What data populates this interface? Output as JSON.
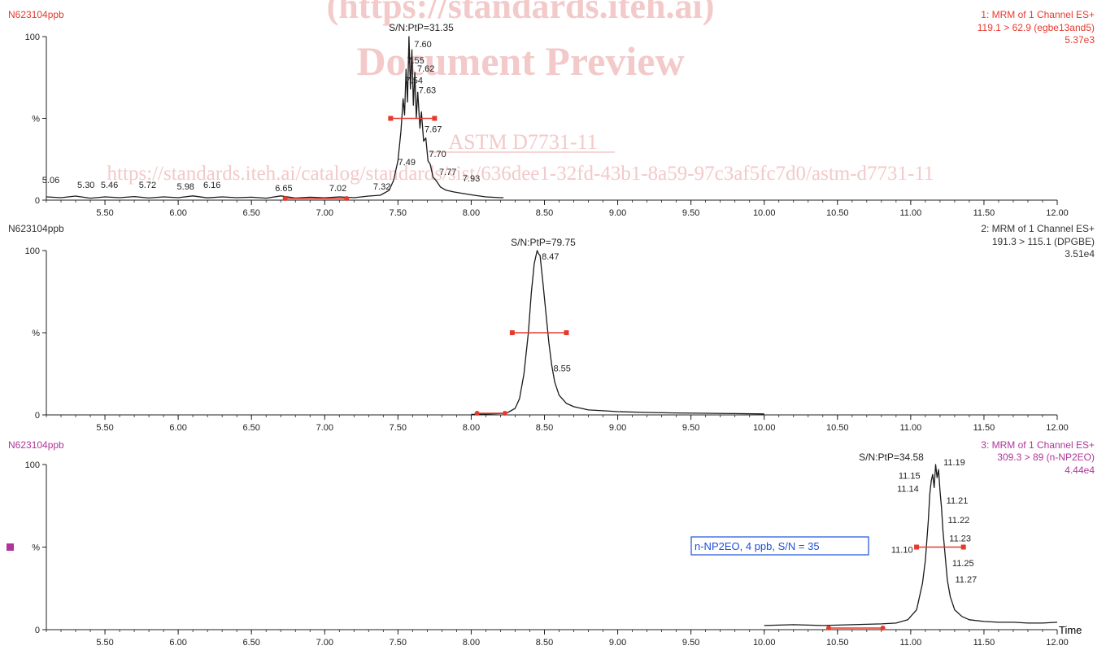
{
  "watermark": {
    "line1": "(https://standards.iteh.ai)",
    "line2": "Document Preview",
    "line3": "ASTM D7731-11",
    "line4": "https://standards.iteh.ai/catalog/standards/sist/636dee1-32fd-43b1-8a59-97c3af5fc7d0/astm-d7731-11"
  },
  "colors": {
    "trace": "#1a1a1a",
    "integration": "#e63a2e",
    "panel1_header": "#e63a2e",
    "panel2_header": "#333333",
    "panel3_header": "#b0359a",
    "annotation_text": "#1f4fd8",
    "watermark": "#f3c9c9"
  },
  "x_axis_title": "Time",
  "chart_data": [
    {
      "type": "line",
      "sample": "N623104ppb",
      "channel": "1: MRM of 1 Channel ES+",
      "transition": "119.1 > 62.9 (egbe13and5)",
      "intensity": "5.37e3",
      "xlim": [
        5.1,
        12.0
      ],
      "ylim": [
        0,
        100
      ],
      "x_ticks": [
        "5.50",
        "6.00",
        "6.50",
        "7.00",
        "7.50",
        "8.00",
        "8.50",
        "9.00",
        "9.50",
        "10.00",
        "10.50",
        "11.00",
        "11.50",
        "12.00"
      ],
      "y_ticks": [
        "0",
        "%",
        "100"
      ],
      "sn_label": "S/N:PtP=31.35",
      "peak_labels": [
        {
          "x": 5.06,
          "y": 9,
          "text": "5.06"
        },
        {
          "x": 5.3,
          "y": 6,
          "text": "5.30"
        },
        {
          "x": 5.46,
          "y": 6,
          "text": "5.46"
        },
        {
          "x": 5.72,
          "y": 6,
          "text": "5.72"
        },
        {
          "x": 5.98,
          "y": 5,
          "text": "5.98"
        },
        {
          "x": 6.16,
          "y": 6,
          "text": "6.16"
        },
        {
          "x": 6.65,
          "y": 4,
          "text": "6.65"
        },
        {
          "x": 7.02,
          "y": 4,
          "text": "7.02"
        },
        {
          "x": 7.32,
          "y": 5,
          "text": "7.32"
        },
        {
          "x": 7.49,
          "y": 20,
          "text": "7.49"
        },
        {
          "x": 7.54,
          "y": 70,
          "text": "7.54"
        },
        {
          "x": 7.55,
          "y": 82,
          "text": "7.55"
        },
        {
          "x": 7.6,
          "y": 92,
          "text": "7.60"
        },
        {
          "x": 7.62,
          "y": 77,
          "text": "7.62"
        },
        {
          "x": 7.63,
          "y": 64,
          "text": "7.63"
        },
        {
          "x": 7.67,
          "y": 40,
          "text": "7.67"
        },
        {
          "x": 7.7,
          "y": 25,
          "text": "7.70"
        },
        {
          "x": 7.77,
          "y": 14,
          "text": "7.77"
        },
        {
          "x": 7.93,
          "y": 10,
          "text": "7.93"
        }
      ],
      "integration_baseline": [
        6.73,
        7.15
      ],
      "half_height_bar": [
        7.45,
        7.75
      ],
      "half_height": 50,
      "trace": [
        [
          5.1,
          2
        ],
        [
          5.2,
          1.5
        ],
        [
          5.3,
          2.5
        ],
        [
          5.4,
          1.2
        ],
        [
          5.5,
          2
        ],
        [
          5.6,
          1.5
        ],
        [
          5.7,
          2.2
        ],
        [
          5.8,
          1.3
        ],
        [
          5.9,
          2
        ],
        [
          6.0,
          1.5
        ],
        [
          6.1,
          2.6
        ],
        [
          6.2,
          1.4
        ],
        [
          6.3,
          2
        ],
        [
          6.4,
          1.5
        ],
        [
          6.5,
          1.8
        ],
        [
          6.6,
          1.2
        ],
        [
          6.7,
          2.6
        ],
        [
          6.8,
          1.3
        ],
        [
          6.9,
          1.8
        ],
        [
          7.0,
          1.4
        ],
        [
          7.1,
          2
        ],
        [
          7.2,
          1.5
        ],
        [
          7.3,
          2.5
        ],
        [
          7.38,
          3
        ],
        [
          7.44,
          6
        ],
        [
          7.47,
          12
        ],
        [
          7.5,
          24
        ],
        [
          7.52,
          42
        ],
        [
          7.535,
          62
        ],
        [
          7.545,
          52
        ],
        [
          7.555,
          80
        ],
        [
          7.565,
          60
        ],
        [
          7.575,
          100
        ],
        [
          7.585,
          68
        ],
        [
          7.595,
          92
        ],
        [
          7.605,
          58
        ],
        [
          7.615,
          78
        ],
        [
          7.625,
          50
        ],
        [
          7.635,
          66
        ],
        [
          7.65,
          44
        ],
        [
          7.66,
          54
        ],
        [
          7.675,
          36
        ],
        [
          7.69,
          38
        ],
        [
          7.705,
          24
        ],
        [
          7.72,
          22
        ],
        [
          7.74,
          14
        ],
        [
          7.76,
          12
        ],
        [
          7.79,
          8
        ],
        [
          7.83,
          6
        ],
        [
          7.88,
          5
        ],
        [
          7.95,
          4
        ],
        [
          8.02,
          3
        ],
        [
          8.1,
          2
        ],
        [
          8.2,
          1.5
        ],
        [
          8.22,
          1.5
        ]
      ]
    },
    {
      "type": "line",
      "sample": "N623104ppb",
      "channel": "2: MRM of 1 Channel ES+",
      "transition": "191.3 > 115.1 (DPGBE)",
      "intensity": "3.51e4",
      "xlim": [
        5.1,
        12.0
      ],
      "ylim": [
        0,
        100
      ],
      "x_ticks": [
        "5.50",
        "6.00",
        "6.50",
        "7.00",
        "7.50",
        "8.00",
        "8.50",
        "9.00",
        "9.50",
        "10.00",
        "10.50",
        "11.00",
        "11.50",
        "12.00"
      ],
      "y_ticks": [
        "0",
        "%",
        "100"
      ],
      "sn_label": "S/N:PtP=79.75",
      "peak_labels": [
        {
          "x": 8.47,
          "y": 93,
          "text": "8.47"
        },
        {
          "x": 8.55,
          "y": 25,
          "text": "8.55"
        }
      ],
      "integration_baseline": [
        8.04,
        8.23
      ],
      "half_height_bar": [
        8.28,
        8.65
      ],
      "half_height": 50,
      "trace": [
        [
          8.0,
          0.3
        ],
        [
          8.1,
          0.5
        ],
        [
          8.2,
          0.8
        ],
        [
          8.25,
          1.5
        ],
        [
          8.3,
          4
        ],
        [
          8.33,
          10
        ],
        [
          8.36,
          25
        ],
        [
          8.39,
          50
        ],
        [
          8.41,
          74
        ],
        [
          8.43,
          92
        ],
        [
          8.45,
          100
        ],
        [
          8.46,
          98
        ],
        [
          8.47,
          97
        ],
        [
          8.49,
          80
        ],
        [
          8.51,
          62
        ],
        [
          8.53,
          44
        ],
        [
          8.55,
          30
        ],
        [
          8.57,
          20
        ],
        [
          8.6,
          12
        ],
        [
          8.65,
          7
        ],
        [
          8.7,
          5
        ],
        [
          8.8,
          3
        ],
        [
          8.9,
          2.5
        ],
        [
          9.0,
          2
        ],
        [
          9.2,
          1.5
        ],
        [
          9.4,
          1.2
        ],
        [
          9.6,
          1
        ],
        [
          9.8,
          0.8
        ],
        [
          10.0,
          0.6
        ]
      ]
    },
    {
      "type": "line",
      "sample": "N623104ppb",
      "channel": "3: MRM of 1 Channel ES+",
      "transition": "309.3 > 89 (n-NP2EO)",
      "intensity": "4.44e4",
      "xlim": [
        5.1,
        12.0
      ],
      "ylim": [
        0,
        100
      ],
      "x_ticks": [
        "5.50",
        "6.00",
        "6.50",
        "7.00",
        "7.50",
        "8.00",
        "8.50",
        "9.00",
        "9.50",
        "10.00",
        "10.50",
        "11.00",
        "11.50",
        "12.00"
      ],
      "y_ticks": [
        "0",
        "%",
        "100"
      ],
      "sn_label": "S/N:PtP=34.58",
      "annotation": "n-NP2EO, 4 ppb, S/N = 35",
      "peak_labels": [
        {
          "x": 11.1,
          "y": 45,
          "text": "11.10"
        },
        {
          "x": 11.14,
          "y": 82,
          "text": "11.14"
        },
        {
          "x": 11.15,
          "y": 90,
          "text": "11.15"
        },
        {
          "x": 11.19,
          "y": 98,
          "text": "11.19"
        },
        {
          "x": 11.21,
          "y": 75,
          "text": "11.21"
        },
        {
          "x": 11.22,
          "y": 63,
          "text": "11.22"
        },
        {
          "x": 11.23,
          "y": 52,
          "text": "11.23"
        },
        {
          "x": 11.25,
          "y": 37,
          "text": "11.25"
        },
        {
          "x": 11.27,
          "y": 27,
          "text": "11.27"
        }
      ],
      "integration_baseline": [
        10.44,
        10.81
      ],
      "half_height_bar": [
        11.04,
        11.36
      ],
      "half_height": 50,
      "trace": [
        [
          10.0,
          2.5
        ],
        [
          10.2,
          3
        ],
        [
          10.4,
          2.5
        ],
        [
          10.6,
          3
        ],
        [
          10.8,
          3.5
        ],
        [
          10.9,
          4
        ],
        [
          10.98,
          6
        ],
        [
          11.04,
          12
        ],
        [
          11.08,
          28
        ],
        [
          11.1,
          42
        ],
        [
          11.12,
          66
        ],
        [
          11.13,
          82
        ],
        [
          11.14,
          90
        ],
        [
          11.15,
          94
        ],
        [
          11.16,
          86
        ],
        [
          11.17,
          100
        ],
        [
          11.18,
          92
        ],
        [
          11.19,
          97
        ],
        [
          11.2,
          84
        ],
        [
          11.21,
          74
        ],
        [
          11.22,
          60
        ],
        [
          11.23,
          50
        ],
        [
          11.24,
          40
        ],
        [
          11.25,
          30
        ],
        [
          11.27,
          20
        ],
        [
          11.3,
          12
        ],
        [
          11.35,
          8
        ],
        [
          11.4,
          6
        ],
        [
          11.5,
          5
        ],
        [
          11.6,
          4.5
        ],
        [
          11.7,
          4.5
        ],
        [
          11.8,
          4
        ],
        [
          11.9,
          4
        ],
        [
          12.0,
          4.5
        ]
      ]
    }
  ]
}
